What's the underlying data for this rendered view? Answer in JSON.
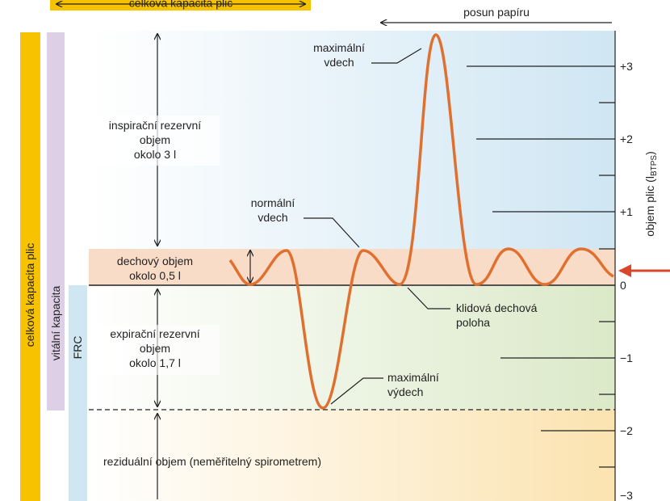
{
  "header": {
    "top_bar": "celková kapacita plic",
    "paper": "posun papíru"
  },
  "bars": {
    "tlc": "celková kapacita plic",
    "vc": "vitální kapacita",
    "frc": "FRC"
  },
  "regions": {
    "irv": [
      "inspirační rezervní",
      "objem",
      "okolo 3 l"
    ],
    "tv": [
      "dechový objem",
      "okolo 0,5 l"
    ],
    "erv": [
      "expirační rezervní",
      "objem",
      "okolo 1,7 l"
    ],
    "rv": "reziduální objem (neměřitelný spirometrem)"
  },
  "annotations": {
    "max_in": [
      "maximální",
      "vdech"
    ],
    "normal_in": [
      "normální",
      "vdech"
    ],
    "rest": [
      "klidová dechová",
      "poloha"
    ],
    "max_out": [
      "maximální",
      "výdech"
    ]
  },
  "axis": {
    "ticks": [
      "+3",
      "+2",
      "+1",
      "0",
      "−1",
      "−2",
      "−3"
    ],
    "label": "objem plic (l",
    "label_sub": "BTPS",
    "label_end": ")"
  }
}
